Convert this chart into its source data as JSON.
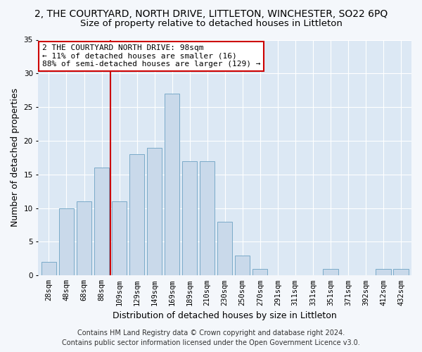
{
  "title1": "2, THE COURTYARD, NORTH DRIVE, LITTLETON, WINCHESTER, SO22 6PQ",
  "title2": "Size of property relative to detached houses in Littleton",
  "xlabel": "Distribution of detached houses by size in Littleton",
  "ylabel": "Number of detached properties",
  "footer1": "Contains HM Land Registry data © Crown copyright and database right 2024.",
  "footer2": "Contains public sector information licensed under the Open Government Licence v3.0.",
  "annotation_line1": "2 THE COURTYARD NORTH DRIVE: 98sqm",
  "annotation_line2": "← 11% of detached houses are smaller (16)",
  "annotation_line3": "88% of semi-detached houses are larger (129) →",
  "bar_categories": [
    "28sqm",
    "48sqm",
    "68sqm",
    "88sqm",
    "109sqm",
    "129sqm",
    "149sqm",
    "169sqm",
    "189sqm",
    "210sqm",
    "230sqm",
    "250sqm",
    "270sqm",
    "291sqm",
    "311sqm",
    "331sqm",
    "351sqm",
    "371sqm",
    "392sqm",
    "412sqm",
    "432sqm"
  ],
  "bar_values": [
    2,
    10,
    11,
    16,
    11,
    18,
    19,
    27,
    17,
    17,
    8,
    3,
    1,
    0,
    0,
    0,
    1,
    0,
    0,
    1,
    1
  ],
  "bar_color": "#c9d9ea",
  "bar_edgecolor": "#7aaac8",
  "vline_x": 3.5,
  "vline_color": "#cc0000",
  "ylim": [
    0,
    35
  ],
  "yticks": [
    0,
    5,
    10,
    15,
    20,
    25,
    30,
    35
  ],
  "fig_bg_color": "#f4f7fb",
  "plot_bg_color": "#dce8f4",
  "annotation_box_color": "#ffffff",
  "annotation_box_edgecolor": "#cc0000",
  "title1_fontsize": 10,
  "title2_fontsize": 9.5,
  "axis_label_fontsize": 9,
  "tick_fontsize": 7.5,
  "footer_fontsize": 7,
  "annot_fontsize": 8
}
